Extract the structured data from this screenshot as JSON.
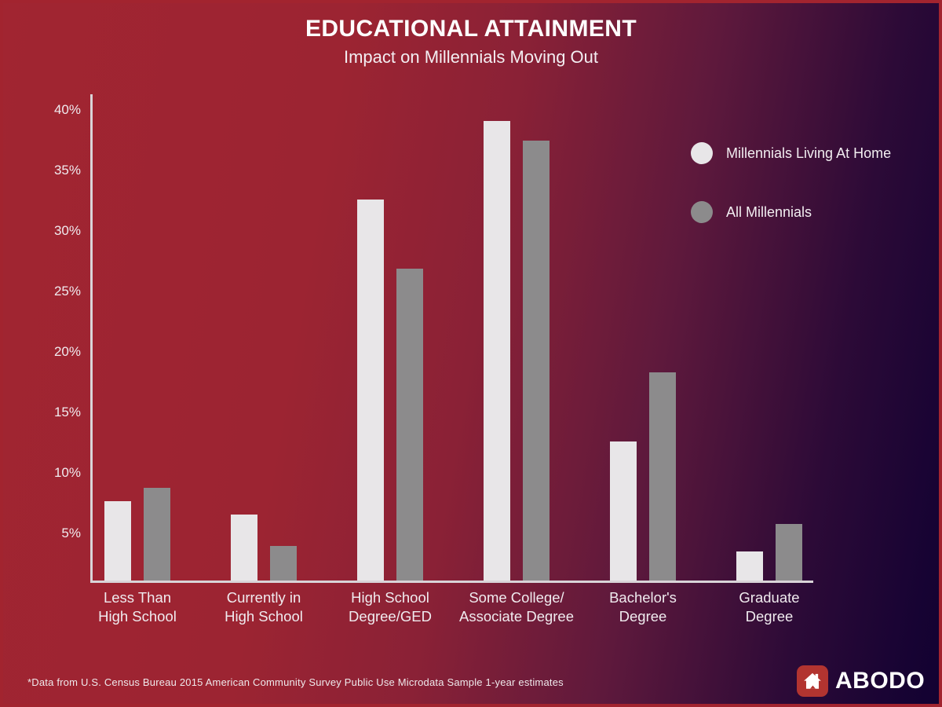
{
  "header": {
    "title": "EDUCATIONAL ATTAINMENT",
    "subtitle": "Impact on Millennials Moving Out"
  },
  "legend": {
    "position": "top-right",
    "items": [
      {
        "label": "Millennials Living At Home",
        "color": "#e8e6e8"
      },
      {
        "label": "All Millennials",
        "color": "#8c8b8c"
      }
    ]
  },
  "chart_data": {
    "type": "bar",
    "categories": [
      [
        "Less Than",
        "High School"
      ],
      [
        "Currently in",
        "High School"
      ],
      [
        "High School",
        "Degree/GED"
      ],
      [
        "Some College/",
        "Associate Degree"
      ],
      [
        "Bachelor's",
        "Degree"
      ],
      [
        "Graduate",
        "Degree"
      ]
    ],
    "series": [
      {
        "name": "Millennials Living At Home",
        "color": "#e8e6e8",
        "values": [
          7.5,
          6.4,
          32.4,
          38.9,
          12.4,
          3.3
        ]
      },
      {
        "name": "All Millennials",
        "color": "#8c8b8c",
        "values": [
          8.6,
          3.8,
          26.7,
          37.3,
          18.1,
          5.6
        ]
      }
    ],
    "values_unit": "%",
    "ylim": [
      0,
      40
    ],
    "yticks": [
      5,
      10,
      15,
      20,
      25,
      30,
      35,
      40
    ],
    "ytick_labels": [
      "5%",
      "10%",
      "15%",
      "20%",
      "25%",
      "30%",
      "35%",
      "40%"
    ],
    "grid": false,
    "title": "EDUCATIONAL ATTAINMENT",
    "subtitle": "Impact on Millennials Moving Out",
    "xlabel": "",
    "ylabel": ""
  },
  "footer": {
    "footnote": "*Data from U.S. Census Bureau 2015 American Community Survey Public Use Microdata Sample 1-year estimates",
    "brand_name": "ABODO"
  },
  "colors": {
    "background_left": "#a12531",
    "background_right": "#120231",
    "border": "#a2242f",
    "axis": "#d9d4d8",
    "series_home": "#e8e6e8",
    "series_all": "#8c8b8c",
    "brand_red": "#b23430"
  }
}
